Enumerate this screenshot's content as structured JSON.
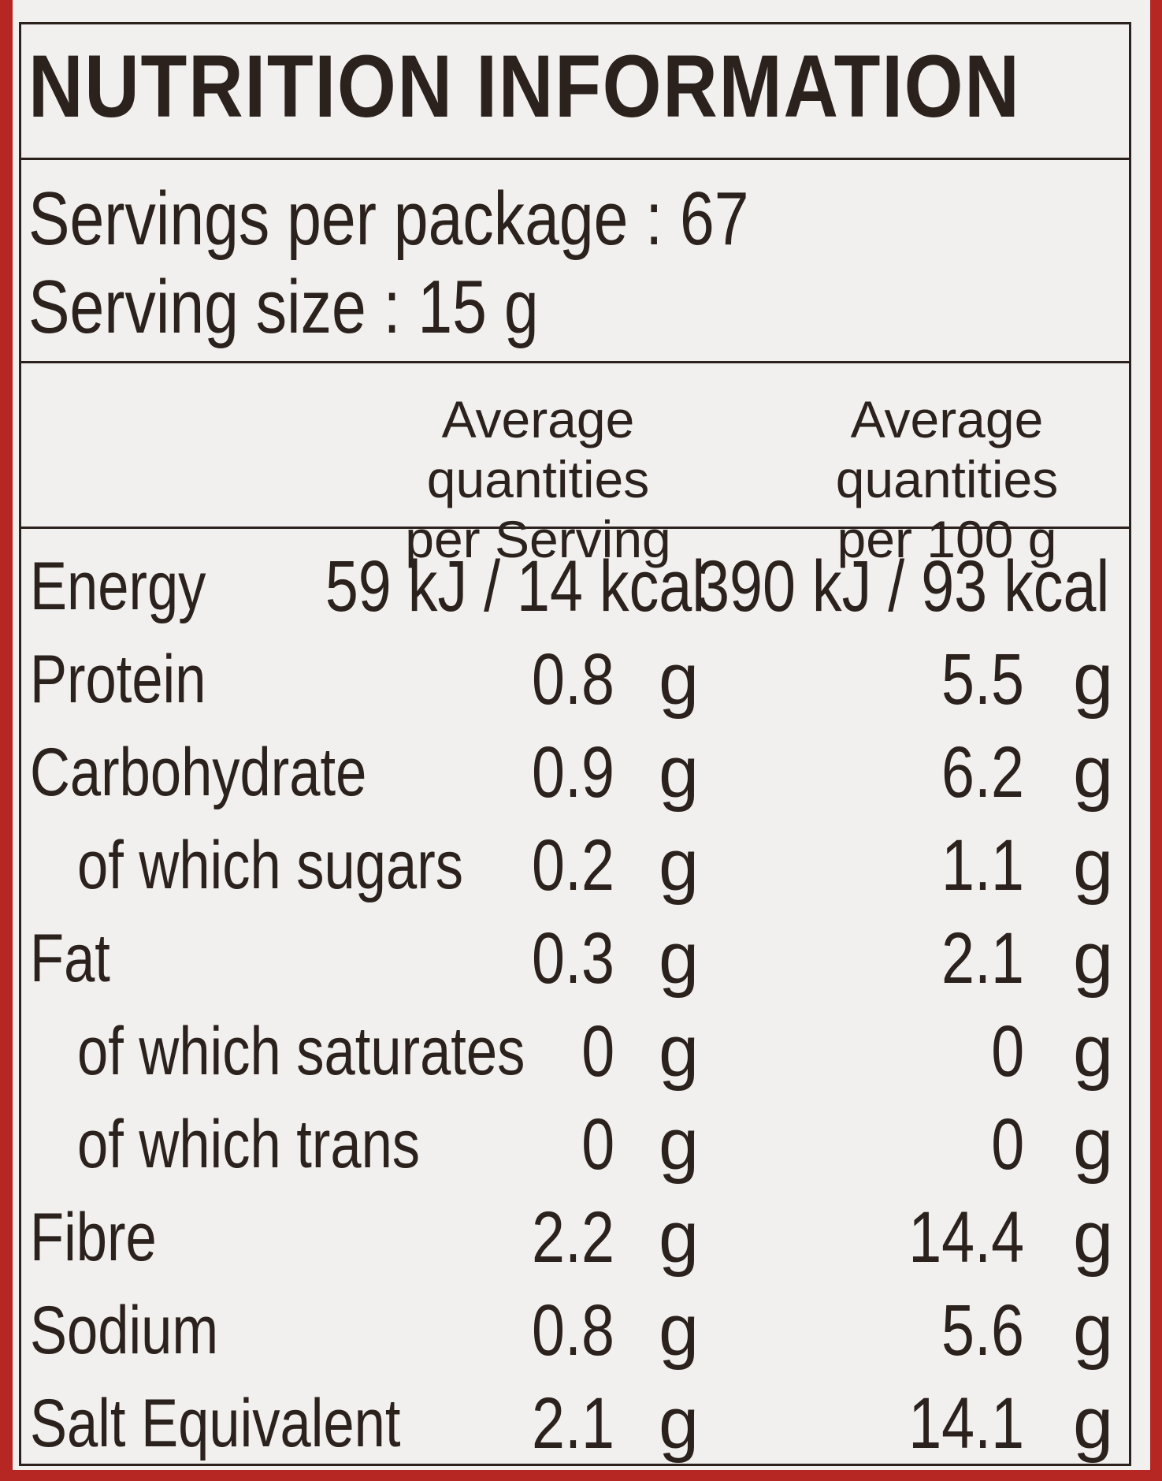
{
  "title": "NUTRITION INFORMATION",
  "servings_per_package": "Servings per package : 67",
  "serving_size": "Serving size : 15 g",
  "columns": {
    "per_serving": [
      "Average quantities",
      "per Serving"
    ],
    "per_100g": [
      "Average quantities",
      "per 100 g"
    ]
  },
  "rows": [
    {
      "label": "Energy",
      "indent": false,
      "serving": "59 kJ / 14 kcal",
      "serving_unit": "",
      "per100": "390 kJ / 93 kcal",
      "per100_unit": ""
    },
    {
      "label": "Protein",
      "indent": false,
      "serving": "0.8",
      "serving_unit": "g",
      "per100": "5.5",
      "per100_unit": "g"
    },
    {
      "label": "Carbohydrate",
      "indent": false,
      "serving": "0.9",
      "serving_unit": "g",
      "per100": "6.2",
      "per100_unit": "g"
    },
    {
      "label": "of which sugars",
      "indent": true,
      "serving": "0.2",
      "serving_unit": "g",
      "per100": "1.1",
      "per100_unit": "g"
    },
    {
      "label": "Fat",
      "indent": false,
      "serving": "0.3",
      "serving_unit": "g",
      "per100": "2.1",
      "per100_unit": "g"
    },
    {
      "label": "of which saturates",
      "indent": true,
      "serving": "0",
      "serving_unit": "g",
      "per100": "0",
      "per100_unit": "g"
    },
    {
      "label": "of which trans",
      "indent": true,
      "serving": "0",
      "serving_unit": "g",
      "per100": "0",
      "per100_unit": "g"
    },
    {
      "label": "Fibre",
      "indent": false,
      "serving": "2.2",
      "serving_unit": "g",
      "per100": "14.4",
      "per100_unit": "g"
    },
    {
      "label": "Sodium",
      "indent": false,
      "serving": "0.8",
      "serving_unit": "g",
      "per100": "5.6",
      "per100_unit": "g"
    },
    {
      "label": "Salt Equivalent",
      "indent": false,
      "serving": "2.1",
      "serving_unit": "g",
      "per100": "14.1",
      "per100_unit": "g"
    }
  ],
  "colors": {
    "package_red": "#b62622",
    "label_white": "#f1f0ee",
    "ink": "#2b211d"
  }
}
